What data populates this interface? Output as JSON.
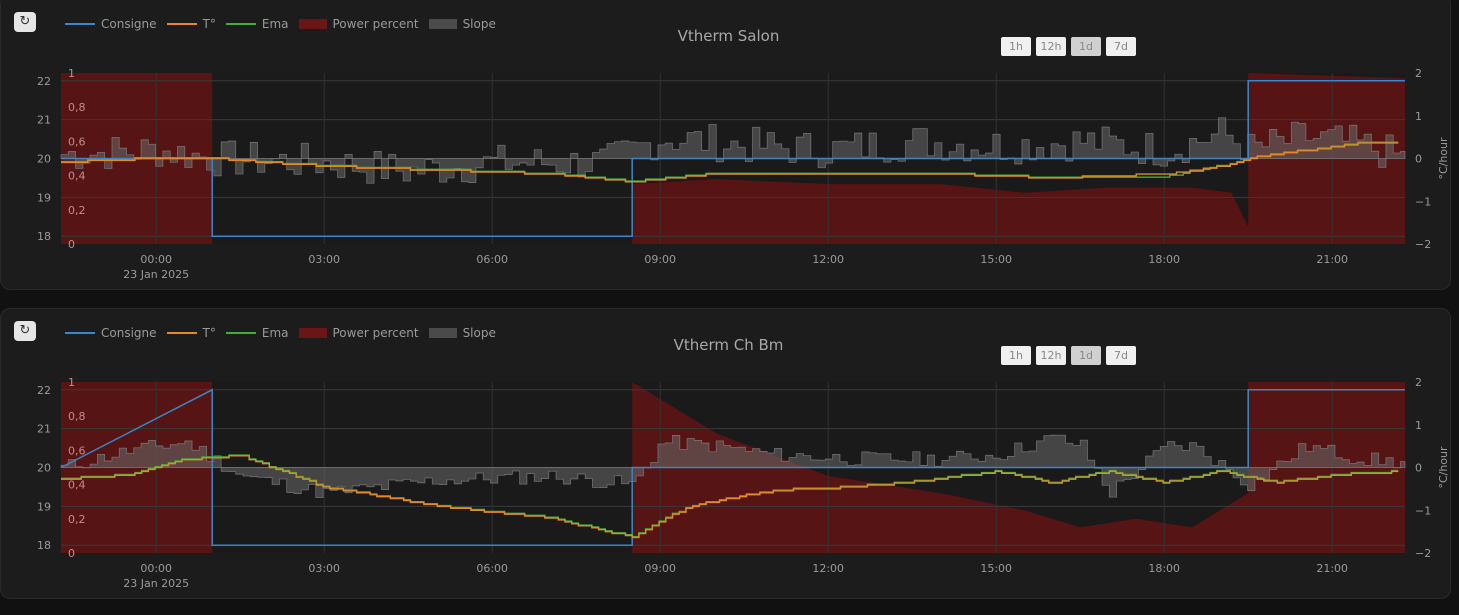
{
  "refresh_icon": "↻",
  "legend": [
    {
      "label": "Consigne",
      "color": "#3a86c8",
      "kind": "line"
    },
    {
      "label": "T°",
      "color": "#e08a2a",
      "kind": "line"
    },
    {
      "label": "Ema",
      "color": "#3fae3a",
      "kind": "line"
    },
    {
      "label": "Power percent",
      "color": "#6b1616",
      "kind": "box"
    },
    {
      "label": "Slope",
      "color": "#4a4a4a",
      "kind": "box"
    }
  ],
  "range_buttons": [
    "1h",
    "12h",
    "1d",
    "7d"
  ],
  "active_range": "1d",
  "date_label": "23 Jan 2025",
  "y_left_ticks": [
    "22",
    "21",
    "20",
    "19",
    "18"
  ],
  "power_ticks": [
    "1",
    "0,8",
    "0,6",
    "0,4",
    "0,2",
    "0"
  ],
  "y_right_ticks": [
    "2",
    "1",
    "0",
    "−1",
    "−2"
  ],
  "y_right_label": "°C/hour",
  "x_ticks": [
    "00:00",
    "03:00",
    "06:00",
    "09:00",
    "12:00",
    "15:00",
    "18:00",
    "21:00"
  ],
  "colors": {
    "consigne": "#3a86c8",
    "temp": "#e08a2a",
    "ema": "#3fae3a",
    "power": "#5a1414",
    "slope_fill": "#6a6a6a",
    "slope_dark": "#0d0d0d"
  },
  "chart_data": [
    {
      "type": "line",
      "title": "Vtherm Salon",
      "x_unit": "hours since 23 Jan 2025 00:00",
      "xlim": [
        -1.7,
        22.3
      ],
      "ylim_temp": [
        17.8,
        22.2
      ],
      "ylim_power": [
        0,
        1
      ],
      "ylim_slope": [
        -2,
        2
      ],
      "series": [
        {
          "name": "Consigne",
          "x": [
            -1.7,
            1.0,
            1.0,
            8.5,
            8.5,
            19.5,
            19.5,
            22.3
          ],
          "y": [
            20,
            20,
            18,
            18,
            20,
            20,
            22,
            22
          ]
        },
        {
          "name": "T°",
          "x": [
            -1.7,
            0,
            1,
            3,
            5,
            7,
            8.5,
            10,
            12,
            14,
            16,
            18,
            19,
            19.5,
            20.5,
            21.5,
            22.3
          ],
          "y": [
            19.9,
            20.0,
            20.0,
            19.8,
            19.7,
            19.6,
            19.4,
            19.6,
            19.6,
            19.6,
            19.5,
            19.6,
            19.8,
            20.0,
            20.2,
            20.4,
            20.4
          ]
        },
        {
          "name": "Ema",
          "x": [
            -1.7,
            0,
            1,
            3,
            5,
            7,
            8.5,
            10,
            12,
            14,
            16,
            18,
            19,
            19.5,
            20.5,
            21.5,
            22.3
          ],
          "y": [
            19.9,
            20.0,
            20.0,
            19.8,
            19.7,
            19.6,
            19.4,
            19.6,
            19.6,
            19.6,
            19.5,
            19.5,
            19.8,
            20.0,
            20.2,
            20.4,
            20.4
          ]
        },
        {
          "name": "Power percent",
          "x": [
            -1.7,
            1.0,
            1.0,
            8.5,
            8.5,
            10,
            12,
            14,
            15.5,
            17,
            18.5,
            19.2,
            19.5,
            19.5,
            22.3
          ],
          "y": [
            1,
            1,
            0,
            0,
            0.35,
            0.38,
            0.35,
            0.35,
            0.3,
            0.33,
            0.33,
            0.3,
            0.1,
            1,
            0.97
          ]
        },
        {
          "name": "Slope",
          "x": [
            -1.7,
            0,
            1,
            3,
            4.5,
            6,
            8,
            9,
            10.5,
            12,
            13.5,
            15,
            16.5,
            18,
            19,
            19.5,
            20.5,
            21.5,
            22.3
          ],
          "y": [
            0.1,
            0.2,
            0.0,
            -0.1,
            -0.3,
            -0.1,
            -0.1,
            0.5,
            0.3,
            0.2,
            0.4,
            0.3,
            0.4,
            0.2,
            0.6,
            0.2,
            0.5,
            0.3,
            0.0
          ]
        }
      ]
    },
    {
      "type": "line",
      "title": "Vtherm Ch Bm",
      "x_unit": "hours since 23 Jan 2025 00:00",
      "xlim": [
        -1.7,
        22.3
      ],
      "ylim_temp": [
        17.8,
        22.2
      ],
      "ylim_power": [
        0,
        1
      ],
      "ylim_slope": [
        -2,
        2
      ],
      "series": [
        {
          "name": "Consigne",
          "x": [
            -1.7,
            1.0,
            1.0,
            8.5,
            8.5,
            19.5,
            19.5,
            22.3
          ],
          "y": [
            20,
            22,
            18,
            18,
            20,
            20,
            22,
            22
          ]
        },
        {
          "name": "T°",
          "x": [
            -1.7,
            -0.5,
            0.5,
            1.5,
            3,
            5,
            7,
            8.5,
            9.5,
            11,
            12.5,
            14,
            15,
            16,
            17,
            18,
            19,
            20,
            21,
            22.3
          ],
          "y": [
            19.7,
            19.8,
            20.2,
            20.3,
            19.5,
            19.0,
            18.7,
            18.2,
            19.0,
            19.4,
            19.5,
            19.7,
            19.9,
            19.6,
            19.9,
            19.6,
            19.9,
            19.6,
            19.8,
            19.9
          ]
        },
        {
          "name": "Ema",
          "x": [
            -1.7,
            -0.5,
            0.5,
            1.5,
            3,
            5,
            7,
            8.5,
            9.5,
            11,
            12.5,
            14,
            15,
            16,
            17,
            18,
            19,
            20,
            21,
            22.3
          ],
          "y": [
            19.7,
            19.8,
            20.2,
            20.3,
            19.5,
            19.0,
            18.7,
            18.2,
            19.0,
            19.4,
            19.5,
            19.7,
            19.9,
            19.6,
            19.9,
            19.6,
            19.9,
            19.6,
            19.8,
            19.9
          ]
        },
        {
          "name": "Power percent",
          "x": [
            -1.7,
            1.0,
            1.0,
            8.5,
            8.5,
            10,
            12,
            14,
            15.5,
            16.5,
            17.5,
            18.5,
            19.5,
            19.5,
            22.3
          ],
          "y": [
            1,
            1,
            0,
            0,
            1,
            0.7,
            0.45,
            0.35,
            0.25,
            0.15,
            0.2,
            0.15,
            0.35,
            1,
            1
          ]
        },
        {
          "name": "Slope",
          "x": [
            -1.7,
            -0.5,
            0.5,
            1.5,
            3,
            5,
            7,
            8.5,
            9,
            10,
            11,
            12.5,
            14,
            15,
            16,
            16.5,
            17,
            18,
            18.5,
            19.5,
            20.5,
            21.5,
            22.3
          ],
          "y": [
            0.0,
            0.4,
            0.6,
            -0.2,
            -0.6,
            -0.3,
            -0.2,
            -0.4,
            0.6,
            0.5,
            0.3,
            0.2,
            0.2,
            0.3,
            0.7,
            0.5,
            -0.6,
            0.5,
            0.5,
            -0.4,
            0.5,
            0.2,
            0.1
          ]
        }
      ]
    }
  ]
}
